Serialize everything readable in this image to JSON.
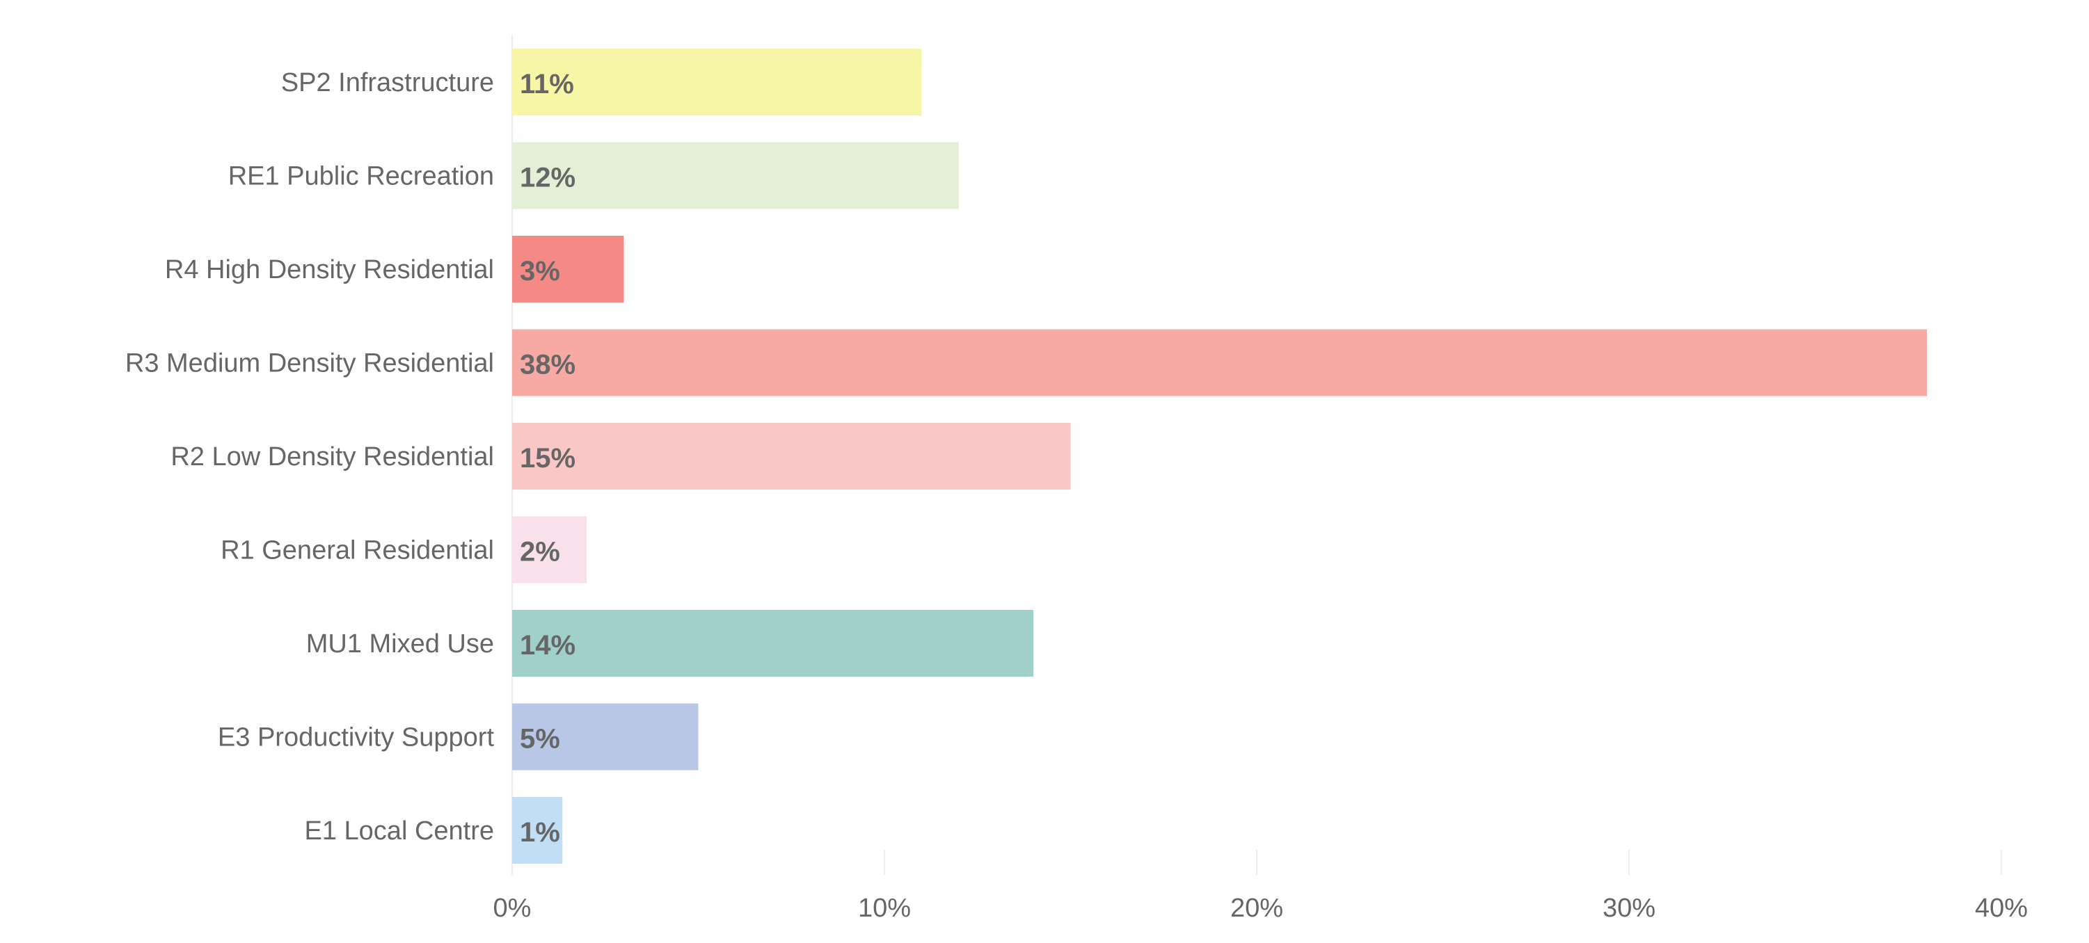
{
  "chart_data": {
    "type": "bar",
    "orientation": "horizontal",
    "title": "",
    "xlabel": "",
    "ylabel": "",
    "xlim": [
      0,
      40
    ],
    "x_ticks": [
      0,
      10,
      20,
      30,
      40
    ],
    "x_tick_labels": [
      "0%",
      "10%",
      "20%",
      "30%",
      "40%"
    ],
    "grid": "vertical-lines",
    "legend": "none",
    "categories": [
      "SP2 Infrastructure",
      "RE1 Public Recreation",
      "R4 High Density Residential",
      "R3 Medium Density Residential",
      "R2 Low Density Residential",
      "R1 General Residential",
      "MU1 Mixed Use",
      "E3 Productivity Support",
      "E1 Local Centre"
    ],
    "values": [
      11,
      12,
      3,
      38,
      15,
      2,
      14,
      5,
      1.35
    ],
    "value_labels": [
      "11%",
      "12%",
      "3%",
      "38%",
      "15%",
      "2%",
      "14%",
      "5%",
      "1%"
    ],
    "colors": [
      "#f7f5a6",
      "#e3f0d5",
      "#f48986",
      "#f7a9a4",
      "#f9c8c6",
      "#f8e1ea",
      "#a1d0ca",
      "#b9c7e6",
      "#c1def5"
    ]
  }
}
